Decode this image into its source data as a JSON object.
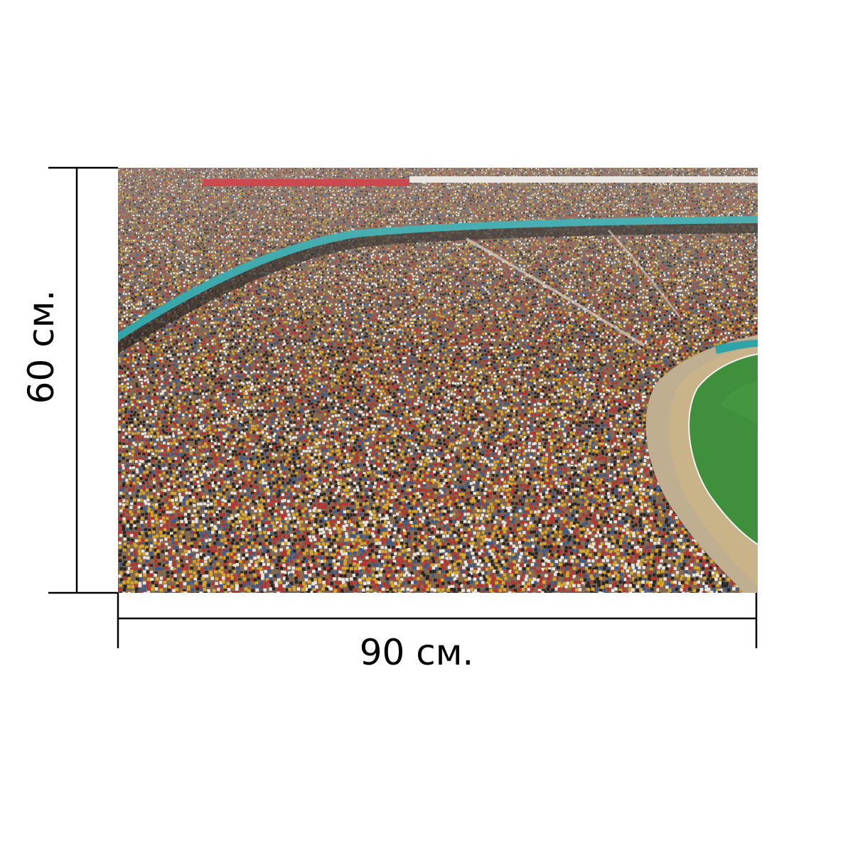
{
  "dimensions": {
    "width_label": "90 см.",
    "height_label": "60 см."
  },
  "photo": {
    "subject": "stadium-crowd",
    "colors": {
      "crowd_yellow": "#d9a62a",
      "crowd_red": "#b8322e",
      "crowd_white": "#e8e4de",
      "crowd_blue": "#3c5a8c",
      "crowd_dark": "#2a2622",
      "banner_teal": "#2fa3a6",
      "banner_red": "#c0262c",
      "pitch_green": "#3f8f3c",
      "track_tan": "#c9b48a"
    }
  },
  "line_color": "#000000"
}
